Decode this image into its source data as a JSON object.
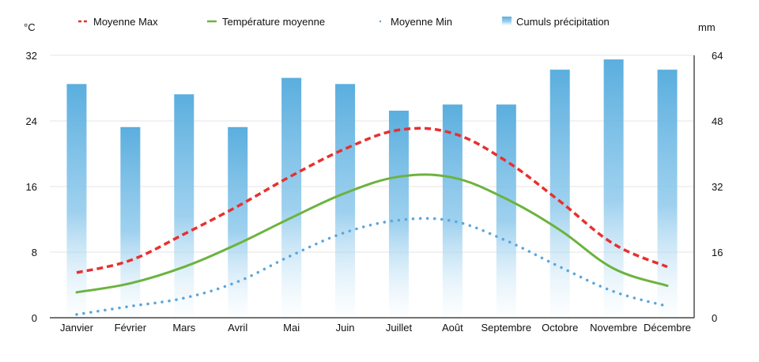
{
  "chart_data": {
    "type": "bar",
    "categories": [
      "Janvier",
      "Février",
      "Mars",
      "Avril",
      "Mai",
      "Juin",
      "Juillet",
      "Août",
      "Septembre",
      "Octobre",
      "Novembre",
      "Décembre"
    ],
    "y_left_label": "°C",
    "y_right_label": "mm",
    "y_left_range": [
      0,
      32
    ],
    "y_right_range": [
      0,
      64
    ],
    "y_left_ticks": [
      "0",
      "8",
      "16",
      "24",
      "32"
    ],
    "y_right_ticks": [
      "0",
      "16",
      "32",
      "48",
      "64"
    ],
    "series": [
      {
        "name": "Moyenne Max",
        "kind": "line",
        "style": "dashed",
        "color": "#e8302f",
        "axis": "left",
        "values": [
          5.5,
          7.0,
          10.2,
          13.6,
          17.3,
          20.6,
          22.9,
          22.5,
          19.1,
          14.2,
          9.0,
          6.2
        ]
      },
      {
        "name": "Température moyenne",
        "kind": "line",
        "style": "solid",
        "color": "#6cb33f",
        "axis": "left",
        "values": [
          3.1,
          4.2,
          6.2,
          9.0,
          12.2,
          15.2,
          17.2,
          17.1,
          14.5,
          10.7,
          6.0,
          3.9
        ]
      },
      {
        "name": "Moyenne Min",
        "kind": "line",
        "style": "dotted",
        "color": "#5ba6dc",
        "axis": "left",
        "values": [
          0.4,
          1.4,
          2.4,
          4.4,
          7.6,
          10.4,
          11.9,
          11.8,
          9.4,
          6.2,
          3.2,
          1.4
        ]
      },
      {
        "name": "Cumuls précipitation",
        "kind": "bar",
        "color": "#5aaede",
        "axis": "right",
        "values": [
          57,
          46.5,
          54.5,
          46.5,
          58.5,
          57,
          50.5,
          52,
          52,
          60.5,
          63,
          60.5
        ]
      }
    ],
    "legend_position": "top"
  }
}
